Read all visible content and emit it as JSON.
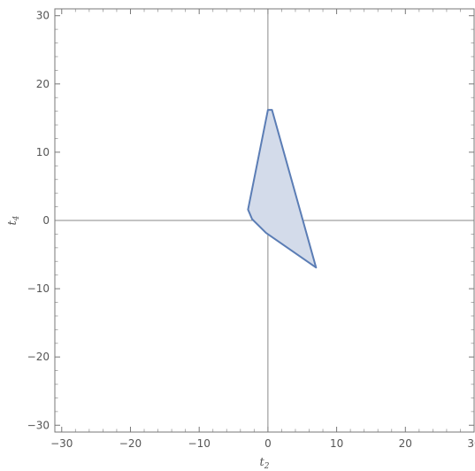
{
  "chart_data": {
    "type": "region",
    "xlabel": "t2",
    "xlabel_main": "t",
    "xlabel_sub": "2",
    "ylabel": "t4",
    "ylabel_main": "t",
    "ylabel_sub": "4",
    "xlim": [
      -31,
      30
    ],
    "ylim": [
      -31,
      31
    ],
    "x_ticks": [
      -30,
      -20,
      -10,
      0,
      10,
      20,
      30
    ],
    "y_ticks": [
      -30,
      -20,
      -10,
      0,
      10,
      20,
      30
    ],
    "x_tick_labels": [
      "−30",
      "−20",
      "−10",
      "0",
      "10",
      "20",
      "30"
    ],
    "y_tick_labels": [
      "−30",
      "−20",
      "−10",
      "0",
      "10",
      "20",
      "30"
    ],
    "polygon": [
      [
        0,
        16.2
      ],
      [
        0.6,
        16.2
      ],
      [
        7,
        -6.9
      ],
      [
        -0.3,
        -1.8
      ],
      [
        -2.3,
        0.2
      ],
      [
        -2.9,
        1.6
      ]
    ],
    "fill_color": "#d3dbea",
    "stroke_color": "#5b7db5",
    "grid": false
  }
}
